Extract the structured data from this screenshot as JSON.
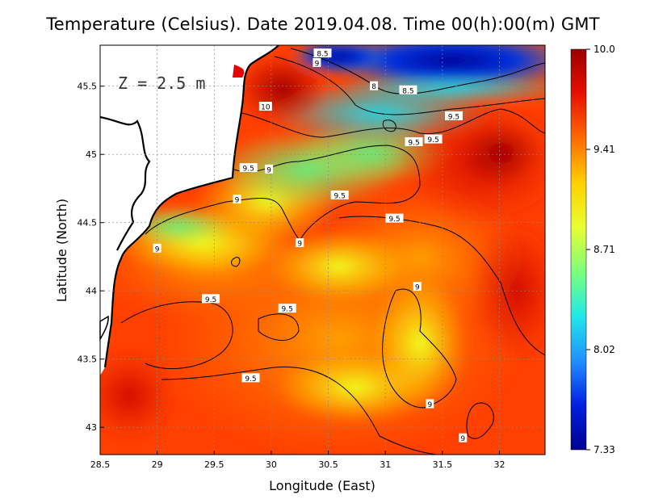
{
  "title": "Temperature (Celsius). Date 2019.04.08. Time 00(h):00(m) GMT",
  "depth_label": "Z = 2.5 m",
  "x_axis": {
    "label": "Longitude (East)",
    "range": [
      28.5,
      32.4
    ],
    "ticks": [
      28.5,
      29,
      29.5,
      30,
      30.5,
      31,
      31.5,
      32
    ]
  },
  "y_axis": {
    "label": "Latitude (North)",
    "range": [
      42.8,
      45.8
    ],
    "ticks": [
      43,
      43.5,
      44,
      44.5,
      45,
      45.5
    ]
  },
  "colorbar": {
    "min": 7.33,
    "max": 10.0,
    "ticks": [
      "10.0",
      "9.41",
      "8.71",
      "8.02",
      "7.33"
    ],
    "colors": [
      "#9a0000",
      "#e81000",
      "#ff6a00",
      "#ffd000",
      "#e8ff30",
      "#7cff7c",
      "#20e8e8",
      "#2090ff",
      "#0020e0",
      "#000090"
    ]
  },
  "contour_labels": [
    {
      "text": "8.5",
      "lon": 30.45,
      "lat": 45.74
    },
    {
      "text": "9",
      "lon": 30.4,
      "lat": 45.67
    },
    {
      "text": "10",
      "lon": 29.95,
      "lat": 45.35
    },
    {
      "text": "8",
      "lon": 30.9,
      "lat": 45.5
    },
    {
      "text": "8.5",
      "lon": 31.2,
      "lat": 45.47
    },
    {
      "text": "9.5",
      "lon": 31.6,
      "lat": 45.28
    },
    {
      "text": "9.5",
      "lon": 31.25,
      "lat": 45.09
    },
    {
      "text": "9.5",
      "lon": 31.42,
      "lat": 45.11
    },
    {
      "text": "9.5",
      "lon": 29.8,
      "lat": 44.9
    },
    {
      "text": "9",
      "lon": 29.98,
      "lat": 44.89
    },
    {
      "text": "9",
      "lon": 29.7,
      "lat": 44.67
    },
    {
      "text": "9.5",
      "lon": 30.6,
      "lat": 44.7
    },
    {
      "text": "9.5",
      "lon": 31.08,
      "lat": 44.53
    },
    {
      "text": "9",
      "lon": 29.0,
      "lat": 44.31
    },
    {
      "text": "9",
      "lon": 30.25,
      "lat": 44.35
    },
    {
      "text": "9",
      "lon": 31.28,
      "lat": 44.03
    },
    {
      "text": "9.5",
      "lon": 29.47,
      "lat": 43.94
    },
    {
      "text": "9.5",
      "lon": 30.14,
      "lat": 43.87
    },
    {
      "text": "9.5",
      "lon": 29.82,
      "lat": 43.36
    },
    {
      "text": "9",
      "lon": 31.39,
      "lat": 43.17
    },
    {
      "text": "9",
      "lon": 31.68,
      "lat": 42.92
    }
  ]
}
